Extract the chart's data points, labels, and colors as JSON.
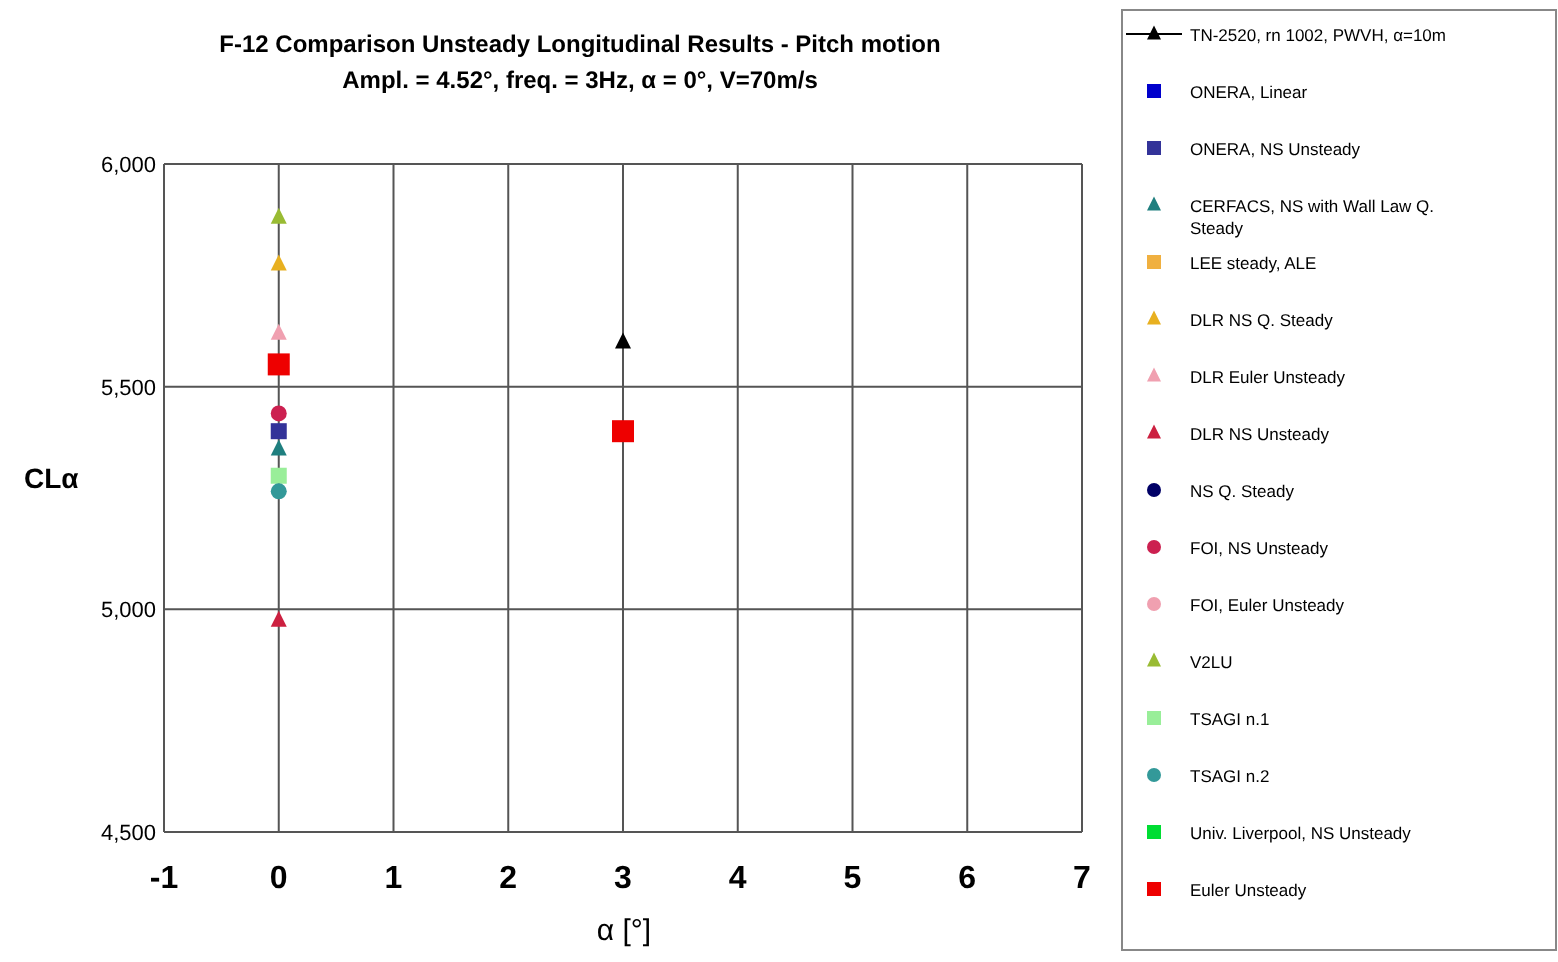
{
  "chart_data": {
    "type": "scatter",
    "title": "F-12 Comparison Unsteady Longitudinal Results  -  Pitch motion",
    "subtitle": "Ampl. = 4.52°, freq. = 3Hz, α = 0°, V=70m/s",
    "xlabel": "α [°]",
    "ylabel": "CLα",
    "x": [
      0,
      3
    ],
    "xlim": [
      -1,
      7
    ],
    "xticks": [
      -1,
      0,
      1,
      2,
      3,
      4,
      5,
      6,
      7
    ],
    "ylim": [
      4500,
      6000
    ],
    "yticks": [
      {
        "value": 4500,
        "label": "4,500"
      },
      {
        "value": 5000,
        "label": "5,000"
      },
      {
        "value": 5500,
        "label": "5,500"
      },
      {
        "value": 6000,
        "label": "6,000"
      }
    ],
    "grid": true,
    "legend": "right",
    "series": [
      {
        "name": "TN-2520, rn 1002, PWVH, α=10m",
        "type": "line",
        "marker": "triangle",
        "color": "#000000",
        "values": [
          null,
          5600
        ]
      },
      {
        "name": "ONERA, Linear",
        "marker": "square",
        "color": "#0000cc",
        "values": [
          null,
          null
        ]
      },
      {
        "name": "ONERA, NS Unsteady",
        "marker": "square",
        "color": "#333399",
        "values": [
          5400,
          null
        ]
      },
      {
        "name": "CERFACS, NS with Wall Law Q. Steady",
        "marker": "triangle",
        "color": "#1f7f7f",
        "values": [
          5360,
          null
        ]
      },
      {
        "name": "LEE steady, ALE",
        "marker": "square",
        "color": "#f0b040",
        "values": [
          null,
          null
        ]
      },
      {
        "name": "DLR NS Q. Steady",
        "marker": "triangle",
        "color": "#e8b020",
        "values": [
          5775,
          null
        ]
      },
      {
        "name": "DLR Euler Unsteady",
        "marker": "triangle",
        "color": "#f0a0b0",
        "values": [
          5620,
          null
        ]
      },
      {
        "name": "DLR NS Unsteady",
        "marker": "triangle",
        "color": "#cc2040",
        "values": [
          4975,
          null
        ]
      },
      {
        "name": "NS Q. Steady",
        "marker": "circle",
        "color": "#000066",
        "values": [
          null,
          null
        ]
      },
      {
        "name": "FOI, NS Unsteady",
        "marker": "circle",
        "color": "#cc2050",
        "values": [
          5440,
          null
        ]
      },
      {
        "name": "FOI, Euler Unsteady",
        "marker": "circle",
        "color": "#f0a0b0",
        "values": [
          null,
          null
        ]
      },
      {
        "name": "V2LU",
        "marker": "triangle",
        "color": "#99bb33",
        "values": [
          5880,
          null
        ]
      },
      {
        "name": "TSAGI n.1",
        "marker": "square",
        "color": "#99ee99",
        "values": [
          5300,
          null
        ]
      },
      {
        "name": "TSAGI n.2",
        "marker": "circle",
        "color": "#339999",
        "values": [
          5265,
          null
        ]
      },
      {
        "name": "Univ. Liverpool, NS Unsteady",
        "marker": "square",
        "color": "#00dd33",
        "values": [
          null,
          null
        ]
      },
      {
        "name": "Euler Unsteady",
        "marker": "square",
        "color": "#ee0000",
        "values": [
          5550,
          5400
        ]
      }
    ]
  }
}
